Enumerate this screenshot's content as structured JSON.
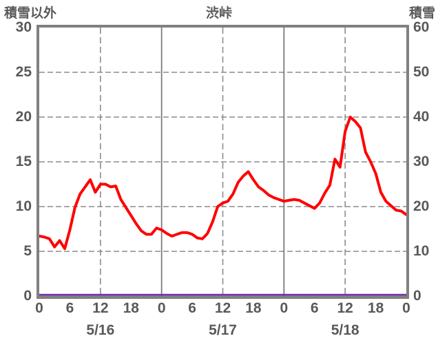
{
  "chart_data": {
    "type": "line",
    "title": "渋峠",
    "left_axis": {
      "title": "積雪以外",
      "min": 0,
      "max": 30,
      "ticks": [
        0,
        5,
        10,
        15,
        20,
        25,
        30
      ]
    },
    "right_axis": {
      "title": "積雪",
      "min": 0,
      "max": 60,
      "ticks": [
        0,
        10,
        20,
        30,
        40,
        50,
        60
      ]
    },
    "x_axis": {
      "unit": "hour",
      "hours_span": 72,
      "tick_interval_hours": 6,
      "tick_labels": [
        "0",
        "6",
        "12",
        "18",
        "0",
        "6",
        "12",
        "18",
        "0",
        "6",
        "12",
        "18",
        "0"
      ],
      "date_labels": [
        "5/16",
        "5/17",
        "5/18"
      ],
      "dashed_gridline_hours": [
        12,
        36,
        60
      ],
      "solid_gridline_hours": [
        24,
        48
      ]
    },
    "horizontal_gridline_values": [
      5,
      10,
      15,
      20,
      25
    ],
    "grid": "dashed",
    "legend_position": "none",
    "series": [
      {
        "name": "積雪以外",
        "axis": "left",
        "color": "#FF0000",
        "hourly_values": [
          6.7,
          6.6,
          6.4,
          5.5,
          6.2,
          5.3,
          7.4,
          9.9,
          11.4,
          12.2,
          13.0,
          11.6,
          12.5,
          12.5,
          12.2,
          12.3,
          10.8,
          9.9,
          9.0,
          8.1,
          7.3,
          6.9,
          6.9,
          7.6,
          7.4,
          7.0,
          6.7,
          6.9,
          7.1,
          7.1,
          6.9,
          6.5,
          6.4,
          7.0,
          8.3,
          10.0,
          10.4,
          10.6,
          11.4,
          12.7,
          13.4,
          13.9,
          13.0,
          12.2,
          11.8,
          11.3,
          11.0,
          10.8,
          10.6,
          10.7,
          10.8,
          10.7,
          10.4,
          10.1,
          9.8,
          10.4,
          11.5,
          12.4,
          15.3,
          14.4,
          18.4,
          20.0,
          19.5,
          18.8,
          16.1,
          15.0,
          13.7,
          11.6,
          10.6,
          10.1,
          9.6,
          9.5,
          9.1
        ]
      },
      {
        "name": "積雪",
        "axis": "right",
        "color": "#7030A0",
        "hourly_values": [
          0,
          0,
          0,
          0,
          0,
          0,
          0,
          0,
          0,
          0,
          0,
          0,
          0,
          0,
          0,
          0,
          0,
          0,
          0,
          0,
          0,
          0,
          0,
          0,
          0,
          0,
          0,
          0,
          0,
          0,
          0,
          0,
          0,
          0,
          0,
          0,
          0,
          0,
          0,
          0,
          0,
          0,
          0,
          0,
          0,
          0,
          0,
          0,
          0,
          0,
          0,
          0,
          0,
          0,
          0,
          0,
          0,
          0,
          0,
          0,
          0,
          0,
          0,
          0,
          0,
          0,
          0,
          0,
          0,
          0,
          0,
          0,
          0
        ]
      }
    ]
  },
  "colors": {
    "text": "#595959",
    "plot_border": "#808080",
    "gridline_dashed": "#8C8C8C",
    "gridline_solid": "#7A7A7A",
    "background": "#FFFFFF",
    "series_other_than_snow": "#FF0000",
    "series_snow_depth": "#7030A0"
  }
}
